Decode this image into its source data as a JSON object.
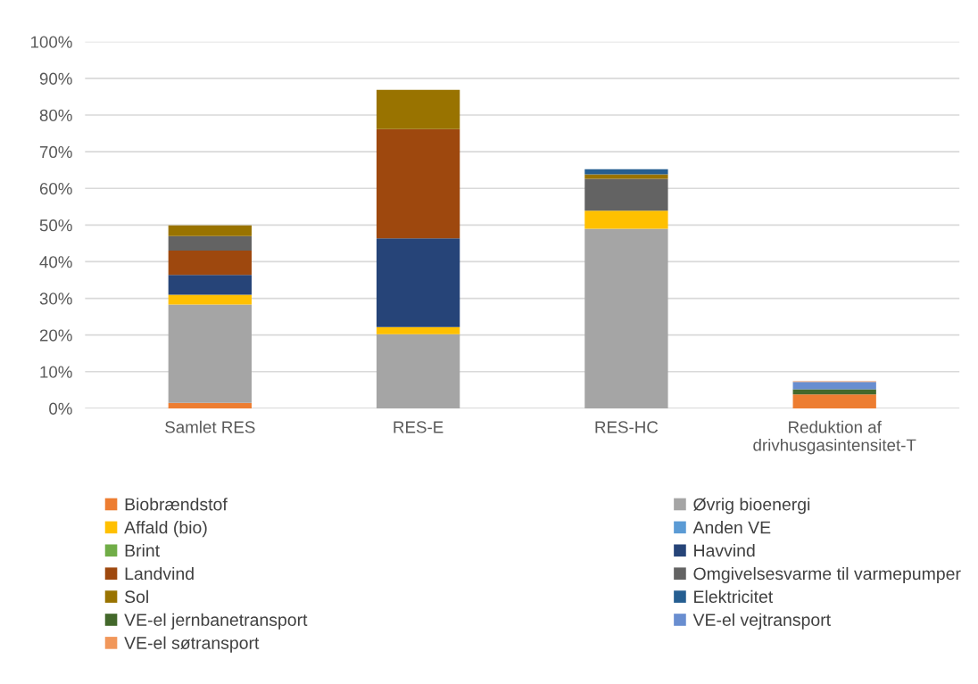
{
  "chart_data": {
    "type": "bar",
    "stacked": true,
    "categories": [
      "Samlet RES",
      "RES-E",
      "RES-HC",
      "Reduktion af\ndrivhusgasintensitet-T"
    ],
    "series": [
      {
        "name": "Biobrændstof",
        "color": "#ed7d31",
        "values": [
          1.5,
          null,
          null,
          3.8
        ]
      },
      {
        "name": "Øvrig bioenergi",
        "color": "#a5a5a5",
        "values": [
          26.8,
          20.2,
          49.0,
          null
        ]
      },
      {
        "name": "Affald (bio)",
        "color": "#ffc000",
        "values": [
          2.7,
          2.0,
          4.9,
          null
        ]
      },
      {
        "name": "Anden VE",
        "color": "#5b9bd5",
        "values": [
          null,
          null,
          null,
          null
        ]
      },
      {
        "name": "Brint",
        "color": "#70ad47",
        "values": [
          null,
          null,
          null,
          null
        ]
      },
      {
        "name": "Havvind",
        "color": "#264478",
        "values": [
          5.4,
          24.2,
          null,
          null
        ]
      },
      {
        "name": "Landvind",
        "color": "#9e480e",
        "values": [
          6.6,
          29.8,
          null,
          null
        ]
      },
      {
        "name": "Omgivelsesvarme til varmepumper",
        "color": "#636363",
        "values": [
          4.0,
          null,
          8.7,
          null
        ]
      },
      {
        "name": "Sol",
        "color": "#997300",
        "values": [
          2.9,
          10.7,
          1.2,
          null
        ]
      },
      {
        "name": "Elektricitet",
        "color": "#255e91",
        "values": [
          null,
          null,
          1.4,
          null
        ]
      },
      {
        "name": "VE-el jernbanetransport",
        "color": "#43682b",
        "values": [
          null,
          null,
          null,
          1.4
        ]
      },
      {
        "name": "VE-el vejtransport",
        "color": "#698ed0",
        "values": [
          null,
          null,
          null,
          2.0
        ]
      },
      {
        "name": "VE-el søtransport",
        "color": "#f1975a",
        "values": [
          null,
          null,
          null,
          0.2
        ]
      }
    ],
    "ylim": [
      0,
      100
    ],
    "yticks": [
      {
        "value": 0,
        "label": "0%"
      },
      {
        "value": 10,
        "label": "10%"
      },
      {
        "value": 20,
        "label": "20%"
      },
      {
        "value": 30,
        "label": "30%"
      },
      {
        "value": 40,
        "label": "40%"
      },
      {
        "value": 50,
        "label": "50%"
      },
      {
        "value": 60,
        "label": "60%"
      },
      {
        "value": 70,
        "label": "70%"
      },
      {
        "value": 80,
        "label": "80%"
      },
      {
        "value": 90,
        "label": "90%"
      },
      {
        "value": 100,
        "label": "100%"
      }
    ],
    "grid": "y",
    "legend": "bottom"
  }
}
